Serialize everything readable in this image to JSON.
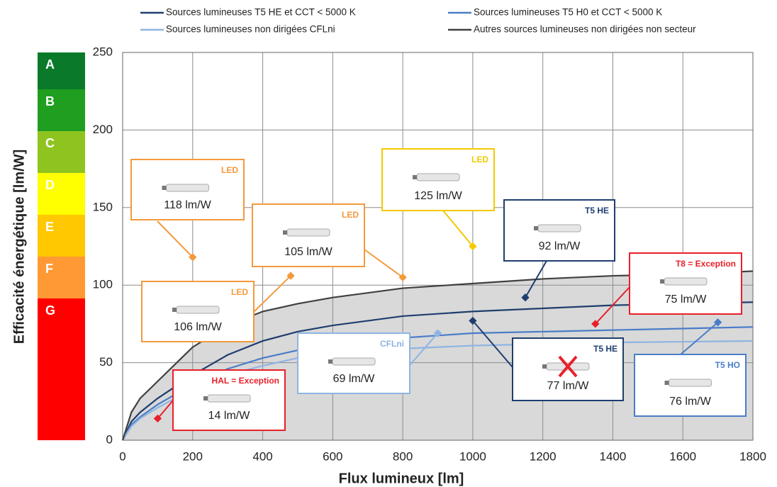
{
  "chart_data": {
    "type": "line",
    "xlabel": "Flux lumineux [lm]",
    "ylabel": "Efficacité énergétique [lm/W]",
    "x": [
      0,
      25,
      50,
      100,
      200,
      300,
      400,
      500,
      600,
      800,
      1000,
      1200,
      1400,
      1600,
      1800
    ],
    "series": [
      {
        "name": "Sources lumineuses T5 HE et CCT < 5000 K",
        "color": "#1f3e6e",
        "values": [
          0,
          12,
          18,
          27,
          42,
          55,
          64,
          70,
          74,
          80,
          83,
          85,
          87,
          88,
          89
        ]
      },
      {
        "name": "Sources lumineuses T5 H0 et CCT < 5000 K",
        "color": "#4a7dc8",
        "values": [
          0,
          10,
          15,
          23,
          36,
          46,
          53,
          58,
          62,
          66,
          69,
          70,
          71,
          72,
          73
        ]
      },
      {
        "name": "Sources lumineuses non dirigées CFLni",
        "color": "#8fb4e3",
        "values": [
          0,
          9,
          14,
          21,
          33,
          42,
          48,
          53,
          56,
          59,
          61,
          62,
          63,
          63.5,
          64
        ]
      },
      {
        "name": "Autres sources lumineuses non dirigées non secteur",
        "color": "#404040",
        "fill": "#d9d9d9",
        "values": [
          0,
          18,
          27,
          38,
          60,
          74,
          83,
          88,
          92,
          98,
          101,
          104,
          106,
          107,
          109
        ]
      }
    ],
    "xlim": [
      0,
      1800
    ],
    "xticks": [
      0,
      200,
      400,
      600,
      800,
      1000,
      1200,
      1400,
      1600,
      1800
    ],
    "ylim": [
      0,
      250
    ],
    "yticks": [
      0,
      50,
      100,
      150,
      200,
      250
    ],
    "grid": true,
    "classes": [
      {
        "label": "A",
        "color": "#0a7a2a"
      },
      {
        "label": "B",
        "color": "#1f9e1f"
      },
      {
        "label": "C",
        "color": "#8fc31f"
      },
      {
        "label": "D",
        "color": "#ffff00"
      },
      {
        "label": "E",
        "color": "#ffc800"
      },
      {
        "label": "F",
        "color": "#ff9933"
      },
      {
        "label": "G",
        "color": "#ff0000"
      }
    ],
    "annotations": [
      {
        "tag": "LED",
        "label": "118 lm/W",
        "x": 200,
        "y": 118,
        "color": "#f39a3c"
      },
      {
        "tag": "LED",
        "label": "105 lm/W",
        "x": 800,
        "y": 105,
        "color": "#f39a3c"
      },
      {
        "tag": "LED",
        "label": "106 lm/W",
        "x": 480,
        "y": 106,
        "color": "#f39a3c"
      },
      {
        "tag": "LED",
        "label": "125 lm/W",
        "x": 1000,
        "y": 125,
        "color": "#f5c800"
      },
      {
        "tag": "T5 HE",
        "label": "92 lm/W",
        "x": 1150,
        "y": 92,
        "color": "#1f3e6e"
      },
      {
        "tag": "T8 = Exception",
        "label": "75 lm/W",
        "x": 1350,
        "y": 75,
        "color": "#e8202a"
      },
      {
        "tag": "CFLni",
        "label": "69 lm/W",
        "x": 900,
        "y": 69,
        "color": "#8fb4e3"
      },
      {
        "tag": "T5 HE",
        "label": "77 lm/W",
        "x": 1000,
        "y": 77,
        "color": "#1f3e6e"
      },
      {
        "tag": "T5 HO",
        "label": "76 lm/W",
        "x": 1700,
        "y": 76,
        "color": "#4a7dc8"
      },
      {
        "tag": "HAL = Exception",
        "label": "14 lm/W",
        "x": 100,
        "y": 14,
        "color": "#e8202a"
      }
    ]
  }
}
